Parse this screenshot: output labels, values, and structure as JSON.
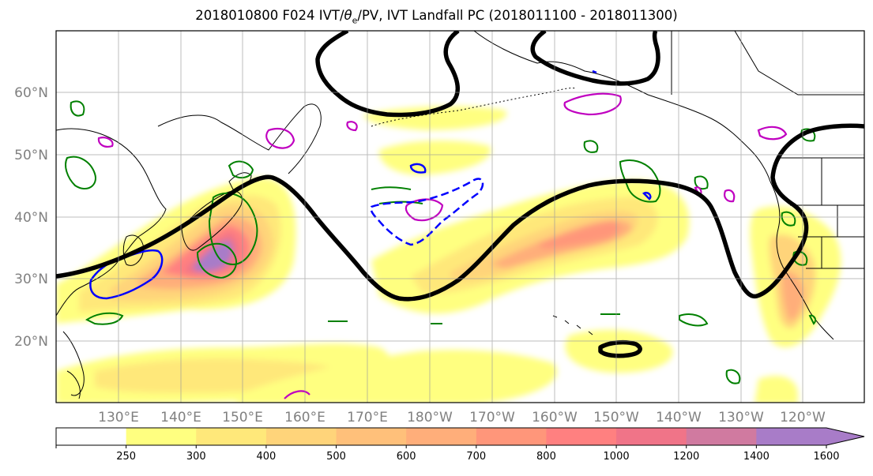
{
  "title": {
    "prefix": "2018010800 F024 IVT/",
    "theta": "θ",
    "sub": "e",
    "suffix": "/PV, IVT Landfall PC (2018011100 - 2018011300)"
  },
  "map": {
    "lat_labels": [
      "20°N",
      "30°N",
      "40°N",
      "50°N",
      "60°N"
    ],
    "lon_labels": [
      "130°E",
      "140°E",
      "150°E",
      "160°E",
      "170°E",
      "180°W",
      "170°W",
      "160°W",
      "150°W",
      "140°W",
      "130°W",
      "120°W"
    ],
    "colors": {
      "contour_500hPa": "#000000",
      "theta_e": "#008000",
      "pv": "#c000c0",
      "landfall_pc": "#0000ff"
    }
  },
  "colorbar": {
    "ticks": [
      "250",
      "300",
      "400",
      "500",
      "600",
      "700",
      "800",
      "1000",
      "1200",
      "1400",
      "1600"
    ],
    "colors": [
      "#ffffff",
      "#ffff80",
      "#ffe87a",
      "#ffd47a",
      "#ffc07a",
      "#ffae7a",
      "#ff967a",
      "#ff8080",
      "#f07488",
      "#d07aa0",
      "#a87cc8"
    ]
  }
}
